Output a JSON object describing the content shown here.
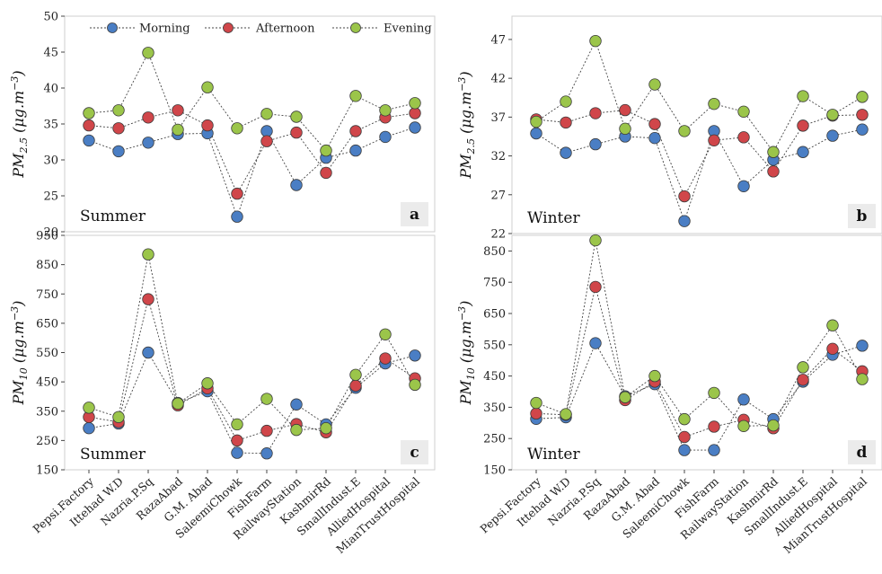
{
  "categories": [
    "Pepsi.Factory",
    "Ittehad W.D",
    "Nazria.P.Sq",
    "RazaAbad",
    "G.M. Abad",
    "SaleemiChowk",
    "FishFarm",
    "RailwayStation",
    "KashmirRd",
    "SmallIndust.E",
    "AlliedHospital",
    "MianTrustHospital"
  ],
  "series_meta": [
    {
      "name": "Morning",
      "color": "#4A7EC4"
    },
    {
      "name": "Afternoon",
      "color": "#D0464A"
    },
    {
      "name": "Evening",
      "color": "#9BC54A"
    }
  ],
  "chart_data": [
    {
      "id": "a",
      "type": "line",
      "panel_label": "a",
      "season": "Summer",
      "ylabel_main": "PM",
      "ylabel_sub": "2.5",
      "ylabel_unit": " (μg.m",
      "ylabel_sup": "−3",
      "ylabel_close": ")",
      "ylim": [
        20,
        50
      ],
      "yticks": [
        20,
        25,
        30,
        35,
        40,
        45,
        50
      ],
      "legend": "top",
      "series": [
        {
          "name": "Morning",
          "values": [
            32.7,
            31.2,
            32.4,
            33.6,
            33.7,
            22.1,
            34.0,
            26.5,
            30.3,
            31.3,
            33.2,
            34.5
          ]
        },
        {
          "name": "Afternoon",
          "values": [
            34.8,
            34.4,
            35.9,
            36.9,
            34.8,
            25.3,
            32.6,
            33.8,
            28.2,
            34.0,
            35.9,
            36.5
          ]
        },
        {
          "name": "Evening",
          "values": [
            36.5,
            36.9,
            44.9,
            34.2,
            40.1,
            34.4,
            36.4,
            36.0,
            31.3,
            38.9,
            36.9,
            37.9
          ]
        }
      ]
    },
    {
      "id": "b",
      "type": "line",
      "panel_label": "b",
      "season": "Winter",
      "ylabel_main": "PM",
      "ylabel_sub": "2.5",
      "ylabel_unit": " (μg.m",
      "ylabel_sup": "−3",
      "ylabel_close": ")",
      "ylim": [
        22,
        50
      ],
      "yticks": [
        22,
        27,
        32,
        37,
        42,
        47
      ],
      "legend": "",
      "series": [
        {
          "name": "Morning",
          "values": [
            34.9,
            32.4,
            33.5,
            34.5,
            34.3,
            23.6,
            35.2,
            28.1,
            31.5,
            32.5,
            34.6,
            35.4
          ]
        },
        {
          "name": "Afternoon",
          "values": [
            36.7,
            36.3,
            37.5,
            37.9,
            36.1,
            26.8,
            34.0,
            34.4,
            30.0,
            35.9,
            37.2,
            37.3
          ]
        },
        {
          "name": "Evening",
          "values": [
            36.4,
            39.0,
            46.8,
            35.5,
            41.2,
            35.2,
            38.7,
            37.7,
            32.5,
            39.7,
            37.3,
            39.6
          ]
        }
      ]
    },
    {
      "id": "c",
      "type": "line",
      "panel_label": "c",
      "season": "Summer",
      "ylabel_main": "PM",
      "ylabel_sub": "10",
      "ylabel_unit": " (μg.m",
      "ylabel_sup": "−3",
      "ylabel_close": ")",
      "ylim": [
        150,
        950
      ],
      "yticks": [
        150,
        250,
        350,
        450,
        550,
        650,
        750,
        850,
        950
      ],
      "legend": "",
      "series": [
        {
          "name": "Morning",
          "values": [
            292,
            308,
            550,
            378,
            418,
            208,
            206,
            373,
            305,
            430,
            513,
            540
          ]
        },
        {
          "name": "Afternoon",
          "values": [
            330,
            313,
            732,
            370,
            428,
            250,
            283,
            306,
            278,
            437,
            530,
            462
          ]
        },
        {
          "name": "Evening",
          "values": [
            362,
            330,
            885,
            376,
            445,
            305,
            392,
            286,
            292,
            474,
            612,
            440
          ]
        }
      ]
    },
    {
      "id": "d",
      "type": "line",
      "panel_label": "d",
      "season": "Winter",
      "ylabel_main": "PM",
      "ylabel_sub": "10",
      "ylabel_unit": " (μg.m",
      "ylabel_sup": "−3",
      "ylabel_close": ")",
      "ylim": [
        150,
        900
      ],
      "yticks": [
        150,
        250,
        350,
        450,
        550,
        650,
        750,
        850
      ],
      "legend": "",
      "series": [
        {
          "name": "Morning",
          "values": [
            313,
            318,
            555,
            385,
            424,
            213,
            213,
            375,
            312,
            432,
            518,
            547
          ]
        },
        {
          "name": "Afternoon",
          "values": [
            330,
            326,
            735,
            373,
            432,
            255,
            288,
            310,
            283,
            438,
            537,
            465
          ]
        },
        {
          "name": "Evening",
          "values": [
            364,
            328,
            884,
            382,
            450,
            312,
            396,
            290,
            292,
            478,
            612,
            440
          ]
        }
      ]
    }
  ]
}
